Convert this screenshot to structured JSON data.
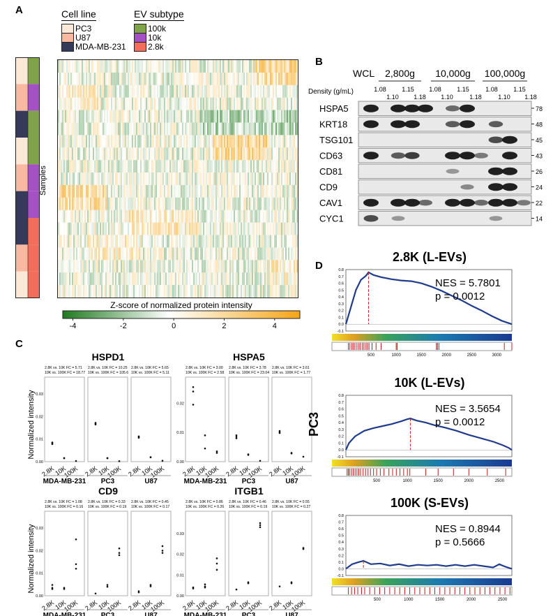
{
  "panel_a": {
    "letter": "A",
    "cell_line_title": "Cell line",
    "cell_lines": [
      {
        "name": "PC3",
        "color": "#fbe8d6"
      },
      {
        "name": "U87",
        "color": "#f8b9a0"
      },
      {
        "name": "MDA-MB-231",
        "color": "#363a5a"
      }
    ],
    "ev_title": "EV subtype",
    "ev_subtypes": [
      {
        "name": "100k",
        "color": "#7ea348"
      },
      {
        "name": "10k",
        "color": "#a451c4"
      },
      {
        "name": "2.8k",
        "color": "#f26e5a"
      }
    ],
    "ylabel": "Samples",
    "sidebar_cells": [
      [
        "#fbe8d6",
        "#7ea348"
      ],
      [
        "#f8b9a0",
        "#a451c4"
      ],
      [
        "#363a5a",
        "#7ea348"
      ],
      [
        "#fbe8d6",
        "#7ea348"
      ],
      [
        "#f8b9a0",
        "#a451c4"
      ],
      [
        "#363a5a",
        "#a451c4"
      ],
      [
        "#363a5a",
        "#f26e5a"
      ],
      [
        "#f8b9a0",
        "#f26e5a"
      ],
      [
        "#fbe8d6",
        "#f26e5a"
      ]
    ],
    "colorbar_title": "Z-score of normalized protein intensity",
    "colorbar_ticks": [
      "-4",
      "-2",
      "0",
      "2",
      "4"
    ],
    "colorbar_colors": [
      "#1f7a1f",
      "#ffffff",
      "#f5a516"
    ]
  },
  "panel_b": {
    "letter": "B",
    "wcl": "WCL",
    "groups": [
      "2,800g",
      "10,000g",
      "100,000g"
    ],
    "density_label": "Density (g/mL)",
    "densities_top": [
      "1.08",
      "1.15",
      "1.08",
      "1.15",
      "1.08",
      "1.15"
    ],
    "densities_bottom": [
      "1.10",
      "1.18",
      "1.10",
      "1.18",
      "1.10",
      "1.18"
    ],
    "blots": [
      {
        "protein": "HSPA5",
        "kda": "78"
      },
      {
        "protein": "KRT18",
        "kda": "48"
      },
      {
        "protein": "TSG101",
        "kda": "45"
      },
      {
        "protein": "CD63",
        "kda": "43"
      },
      {
        "protein": "CD81",
        "kda": "26"
      },
      {
        "protein": "CD9",
        "kda": "24"
      },
      {
        "protein": "CAV1",
        "kda": "22"
      },
      {
        "protein": "CYC1",
        "kda": "14"
      }
    ]
  },
  "panel_c": {
    "letter": "C",
    "ylabel": "Normalized intensity",
    "xcats": [
      "2.8K",
      "10K",
      "100K"
    ],
    "cells": [
      "MDA-MB-231",
      "PC3",
      "U87"
    ],
    "plots": [
      {
        "gene": "HSPD1",
        "yticks": [
          "0.00",
          "0.01",
          "0.02",
          "0.03"
        ],
        "ymax": 0.035,
        "fc": [
          [
            "2.8K vs. 10K FC = 5.71",
            "10K vs. 100K FC = 18.77"
          ],
          [
            "2.8K vs. 10K FC = 10.25",
            "10K vs. 100K FC = 105.6"
          ],
          [
            "2.8K vs. 10K FC = 5.65",
            "10K vs. 100K FC = 5.11"
          ]
        ],
        "points": [
          [
            [
              0.0085,
              0.0078,
              0.0082
            ],
            [
              0.0016,
              0.0015
            ],
            [
              0.0003
            ]
          ],
          [
            [
              0.0172,
              0.0165,
              0.0168
            ],
            [
              0.0016,
              0.0015
            ],
            [
              0.0002
            ]
          ],
          [
            [
              0.0112,
              0.0106,
              0.0109
            ],
            [
              0.002,
              0.0019
            ],
            [
              0.0004
            ]
          ]
        ]
      },
      {
        "gene": "HSPA5",
        "yticks": [
          "0.00",
          "0.01",
          "0.02"
        ],
        "ymax": 0.027,
        "fc": [
          [
            "2.8K vs. 10K FC = 3.00",
            "10K vs. 100K FC = 2.58"
          ],
          [
            "2.8K vs. 10K FC = 3.78",
            "10K vs. 100K FC = 23.04"
          ],
          [
            "2.8K vs. 10K FC = 3.61",
            "10K vs. 100K FC = 1.77"
          ]
        ],
        "points": [
          [
            [
              0.0255,
              0.024,
              0.0195
            ],
            [
              0.009,
              0.0045
            ],
            [
              0.0035,
              0.003
            ]
          ],
          [
            [
              0.009,
              0.0085,
              0.008
            ],
            [
              0.0025,
              0.0023
            ],
            [
              0.0003
            ]
          ],
          [
            [
              0.0105,
              0.0101,
              0.0098
            ],
            [
              0.003,
              0.0028
            ],
            [
              0.0017
            ]
          ]
        ]
      },
      {
        "gene": "CD9",
        "yticks": [
          "0.00",
          "0.01",
          "0.02",
          "0.03"
        ],
        "ymax": 0.035,
        "fc": [
          [
            "2.8K vs. 10K FC = 1.08",
            "10K vs. 100K FC = 0.16"
          ],
          [
            "2.8K vs. 10K FC = 0.33",
            "10K vs. 100K FC = 0.19"
          ],
          [
            "2.8K vs. 10K FC = 0.45",
            "10K vs. 100K FC = 0.17"
          ]
        ],
        "points": [
          [
            [
              0.0048,
              0.0035,
              0.003
            ],
            [
              0.0035,
              0.003
            ],
            [
              0.025,
              0.014,
              0.012
            ]
          ],
          [
            [
              0.001
            ],
            [
              0.0048,
              0.004
            ],
            [
              0.021,
              0.019,
              0.018
            ]
          ],
          [
            [
              0.002,
              0.0015
            ],
            [
              0.0048,
              0.0042
            ],
            [
              0.022,
              0.02,
              0.019
            ]
          ]
        ]
      },
      {
        "gene": "ITGB1",
        "yticks": [
          "0.00",
          "0.01",
          "0.02",
          "0.03"
        ],
        "ymax": 0.038,
        "fc": [
          [
            "2.8K vs. 10K FC = 0.86",
            "10K vs. 100K FC = 0.26"
          ],
          [
            "2.8K vs. 10K FC = 0.46",
            "10K vs. 100K FC = 0.19"
          ],
          [
            "2.8K vs. 10K FC = 0.55",
            "10K vs. 100K FC = 0.27"
          ]
        ],
        "points": [
          [
            [
              0.004,
              0.0035
            ],
            [
              0.0055,
              0.0045,
              0.004
            ],
            [
              0.018,
              0.0155,
              0.0125
            ]
          ],
          [
            [
              0.003
            ],
            [
              0.0065,
              0.006
            ],
            [
              0.035,
              0.034,
              0.033
            ]
          ],
          [
            [
              0.0045
            ],
            [
              0.0065,
              0.006
            ],
            [
              0.023,
              0.0225
            ]
          ]
        ]
      }
    ]
  },
  "panel_d": {
    "letter": "D",
    "side_label": "PC3",
    "plots": [
      {
        "title": "2.8K (L-EVs)",
        "nes": "NES = 5.7801",
        "p": "p = 0.0012",
        "yticks": [
          "-0.1",
          "0.0",
          "0.1",
          "0.2",
          "0.3",
          "0.4",
          "0.5",
          "0.6",
          "0.7",
          "0.8"
        ],
        "xticks": [
          "500",
          "1000",
          "1500",
          "2000",
          "2500",
          "3000"
        ],
        "xmax": 3300,
        "peak": 450,
        "curve": [
          [
            0,
            0
          ],
          [
            100,
            0.25
          ],
          [
            200,
            0.5
          ],
          [
            300,
            0.65
          ],
          [
            400,
            0.71
          ],
          [
            450,
            0.76
          ],
          [
            550,
            0.72
          ],
          [
            700,
            0.69
          ],
          [
            900,
            0.66
          ],
          [
            1100,
            0.64
          ],
          [
            1300,
            0.63
          ],
          [
            1500,
            0.6
          ],
          [
            1700,
            0.55
          ],
          [
            1900,
            0.49
          ],
          [
            2100,
            0.42
          ],
          [
            2300,
            0.35
          ],
          [
            2500,
            0.27
          ],
          [
            2700,
            0.2
          ],
          [
            2900,
            0.12
          ],
          [
            3100,
            0.05
          ],
          [
            3300,
            0.0
          ]
        ],
        "hits": [
          50,
          80,
          120,
          150,
          180,
          220,
          260,
          290,
          330,
          360,
          400,
          430,
          460,
          520,
          600,
          700,
          1000,
          1020,
          1800,
          1820,
          1850,
          3150,
          3300
        ]
      },
      {
        "title": "10K (L-EVs)",
        "nes": "NES = 3.5654",
        "p": "p = 0.0012",
        "yticks": [
          "-0.1",
          "0.0",
          "0.1",
          "0.2",
          "0.3",
          "0.4",
          "0.5",
          "0.6",
          "0.7",
          "0.8"
        ],
        "xticks": [
          "500",
          "1000",
          "1500",
          "2000",
          "2500"
        ],
        "xmax": 2700,
        "peak": 1050,
        "curve": [
          [
            0,
            0
          ],
          [
            50,
            0.1
          ],
          [
            150,
            0.2
          ],
          [
            300,
            0.28
          ],
          [
            450,
            0.32
          ],
          [
            600,
            0.35
          ],
          [
            750,
            0.38
          ],
          [
            900,
            0.42
          ],
          [
            1000,
            0.45
          ],
          [
            1050,
            0.46
          ],
          [
            1150,
            0.43
          ],
          [
            1300,
            0.4
          ],
          [
            1450,
            0.36
          ],
          [
            1600,
            0.33
          ],
          [
            1800,
            0.28
          ],
          [
            2000,
            0.22
          ],
          [
            2200,
            0.17
          ],
          [
            2400,
            0.12
          ],
          [
            2550,
            0.07
          ],
          [
            2650,
            0.03
          ],
          [
            2700,
            0.0
          ]
        ],
        "hits": [
          20,
          40,
          60,
          90,
          120,
          150,
          180,
          210,
          240,
          280,
          320,
          360,
          400,
          450,
          500,
          560,
          620,
          700,
          760,
          820,
          880,
          940,
          1000,
          1040,
          1300,
          1500,
          1750,
          2000,
          2300,
          2600
        ]
      },
      {
        "title": "100K (S-EVs)",
        "nes": "NES = 0.8944",
        "p": "p = 0.5666",
        "yticks": [
          "-0.1",
          "0.0",
          "0.1",
          "0.2",
          "0.3",
          "0.4",
          "0.5",
          "0.6",
          "0.7",
          "0.8"
        ],
        "xticks": [
          "500",
          "1000",
          "1500",
          "2000",
          "2500"
        ],
        "xmax": 2650,
        "peak": 280,
        "curve": [
          [
            0,
            0
          ],
          [
            100,
            0.07
          ],
          [
            200,
            0.1
          ],
          [
            280,
            0.12
          ],
          [
            400,
            0.07
          ],
          [
            550,
            0.08
          ],
          [
            700,
            0.05
          ],
          [
            850,
            0.07
          ],
          [
            1000,
            0.04
          ],
          [
            1150,
            0.06
          ],
          [
            1300,
            0.05
          ],
          [
            1450,
            0.06
          ],
          [
            1600,
            0.04
          ],
          [
            1750,
            0.06
          ],
          [
            1900,
            0.04
          ],
          [
            2050,
            0.06
          ],
          [
            2200,
            0.04
          ],
          [
            2350,
            0.02
          ],
          [
            2450,
            0.07
          ],
          [
            2550,
            0.03
          ],
          [
            2650,
            0.0
          ]
        ],
        "hits": [
          40,
          90,
          140,
          190,
          250,
          300,
          380,
          460,
          540,
          620,
          700,
          780,
          860,
          940,
          1020,
          1100,
          1180,
          1260,
          1340,
          1420,
          1500,
          1580,
          1660,
          1740,
          1820,
          1900,
          1980,
          2060,
          2140,
          2220,
          2300,
          2380,
          2460,
          2540,
          2620
        ]
      }
    ]
  }
}
